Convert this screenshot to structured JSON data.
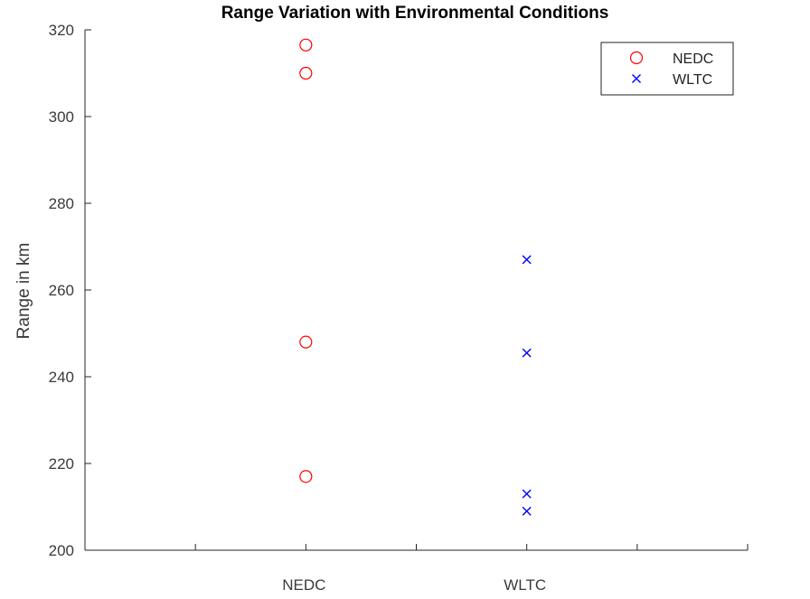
{
  "chart_data": {
    "type": "scatter",
    "title": "Range Variation with Environmental Conditions",
    "xlabel": "",
    "ylabel": "Range in km",
    "categories": [
      "NEDC",
      "WLTC"
    ],
    "xlim": [
      0,
      3
    ],
    "ylim": [
      200,
      320
    ],
    "yticks": [
      "200",
      "220",
      "240",
      "260",
      "280",
      "300",
      "320"
    ],
    "grid": false,
    "legend_location": "top-right",
    "series": [
      {
        "name": "NEDC",
        "marker": "circle",
        "color": "#ff0000",
        "points": [
          {
            "category": "NEDC",
            "y": 316.5
          },
          {
            "category": "NEDC",
            "y": 310
          },
          {
            "category": "NEDC",
            "y": 248
          },
          {
            "category": "NEDC",
            "y": 217
          }
        ]
      },
      {
        "name": "WLTC",
        "marker": "x",
        "color": "#0000ff",
        "points": [
          {
            "category": "WLTC",
            "y": 267
          },
          {
            "category": "WLTC",
            "y": 245.5
          },
          {
            "category": "WLTC",
            "y": 213
          },
          {
            "category": "WLTC",
            "y": 209
          }
        ]
      }
    ]
  }
}
